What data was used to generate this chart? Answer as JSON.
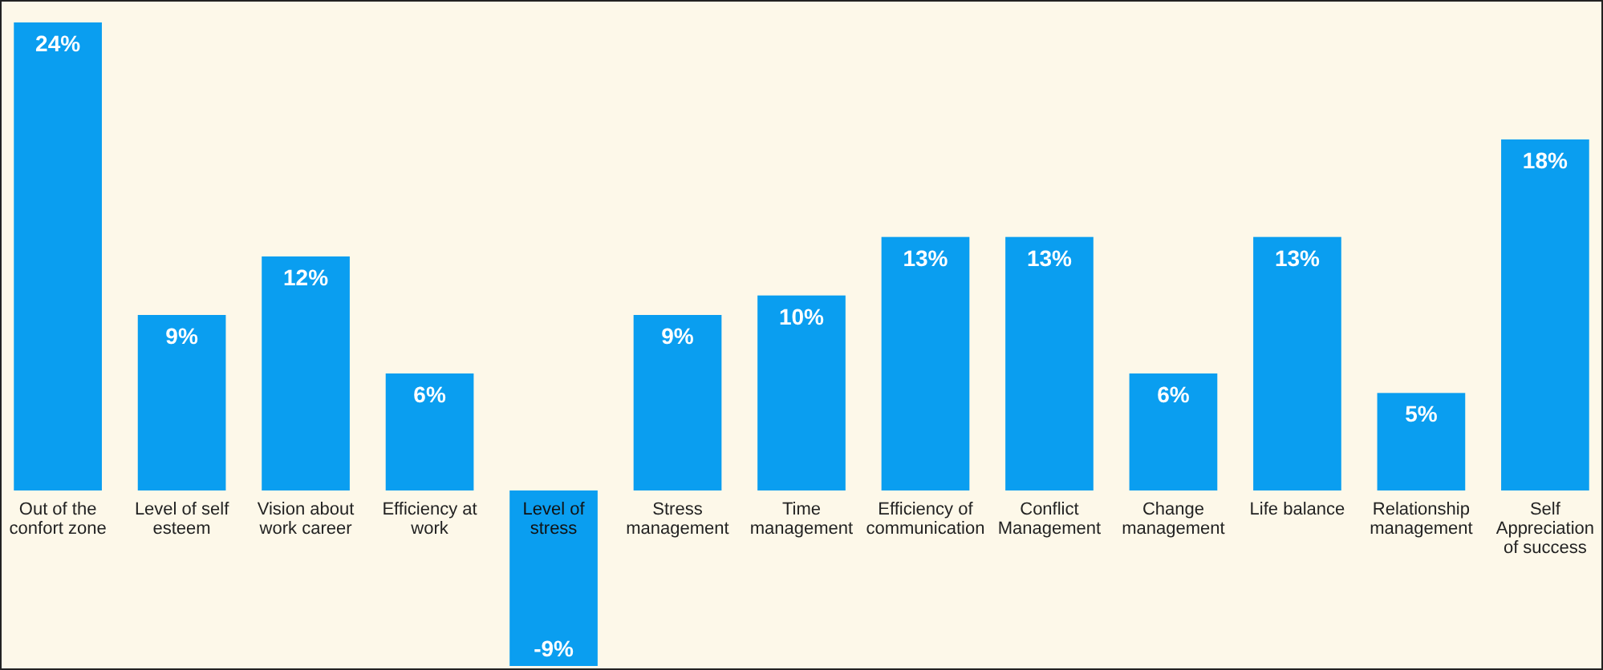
{
  "chart_data": {
    "type": "bar",
    "categories": [
      "Out of the confort zone",
      "Level of self esteem",
      "Vision about work career",
      "Efficiency at work",
      "Level of stress",
      "Stress management",
      "Time management",
      "Efficiency of communication",
      "Conflict Management",
      "Change management",
      "Life balance",
      "Relationship management",
      "Self Appreciation of success"
    ],
    "values": [
      24,
      9,
      12,
      6,
      -9,
      9,
      10,
      13,
      13,
      6,
      13,
      5,
      18
    ],
    "color": "#0a9ef0",
    "data_labels": true,
    "value_labels": [
      "24%",
      "9%",
      "12%",
      "6%",
      "-9%",
      "9%",
      "10%",
      "13%",
      "13%",
      "6%",
      "13%",
      "5%",
      "18%"
    ]
  }
}
